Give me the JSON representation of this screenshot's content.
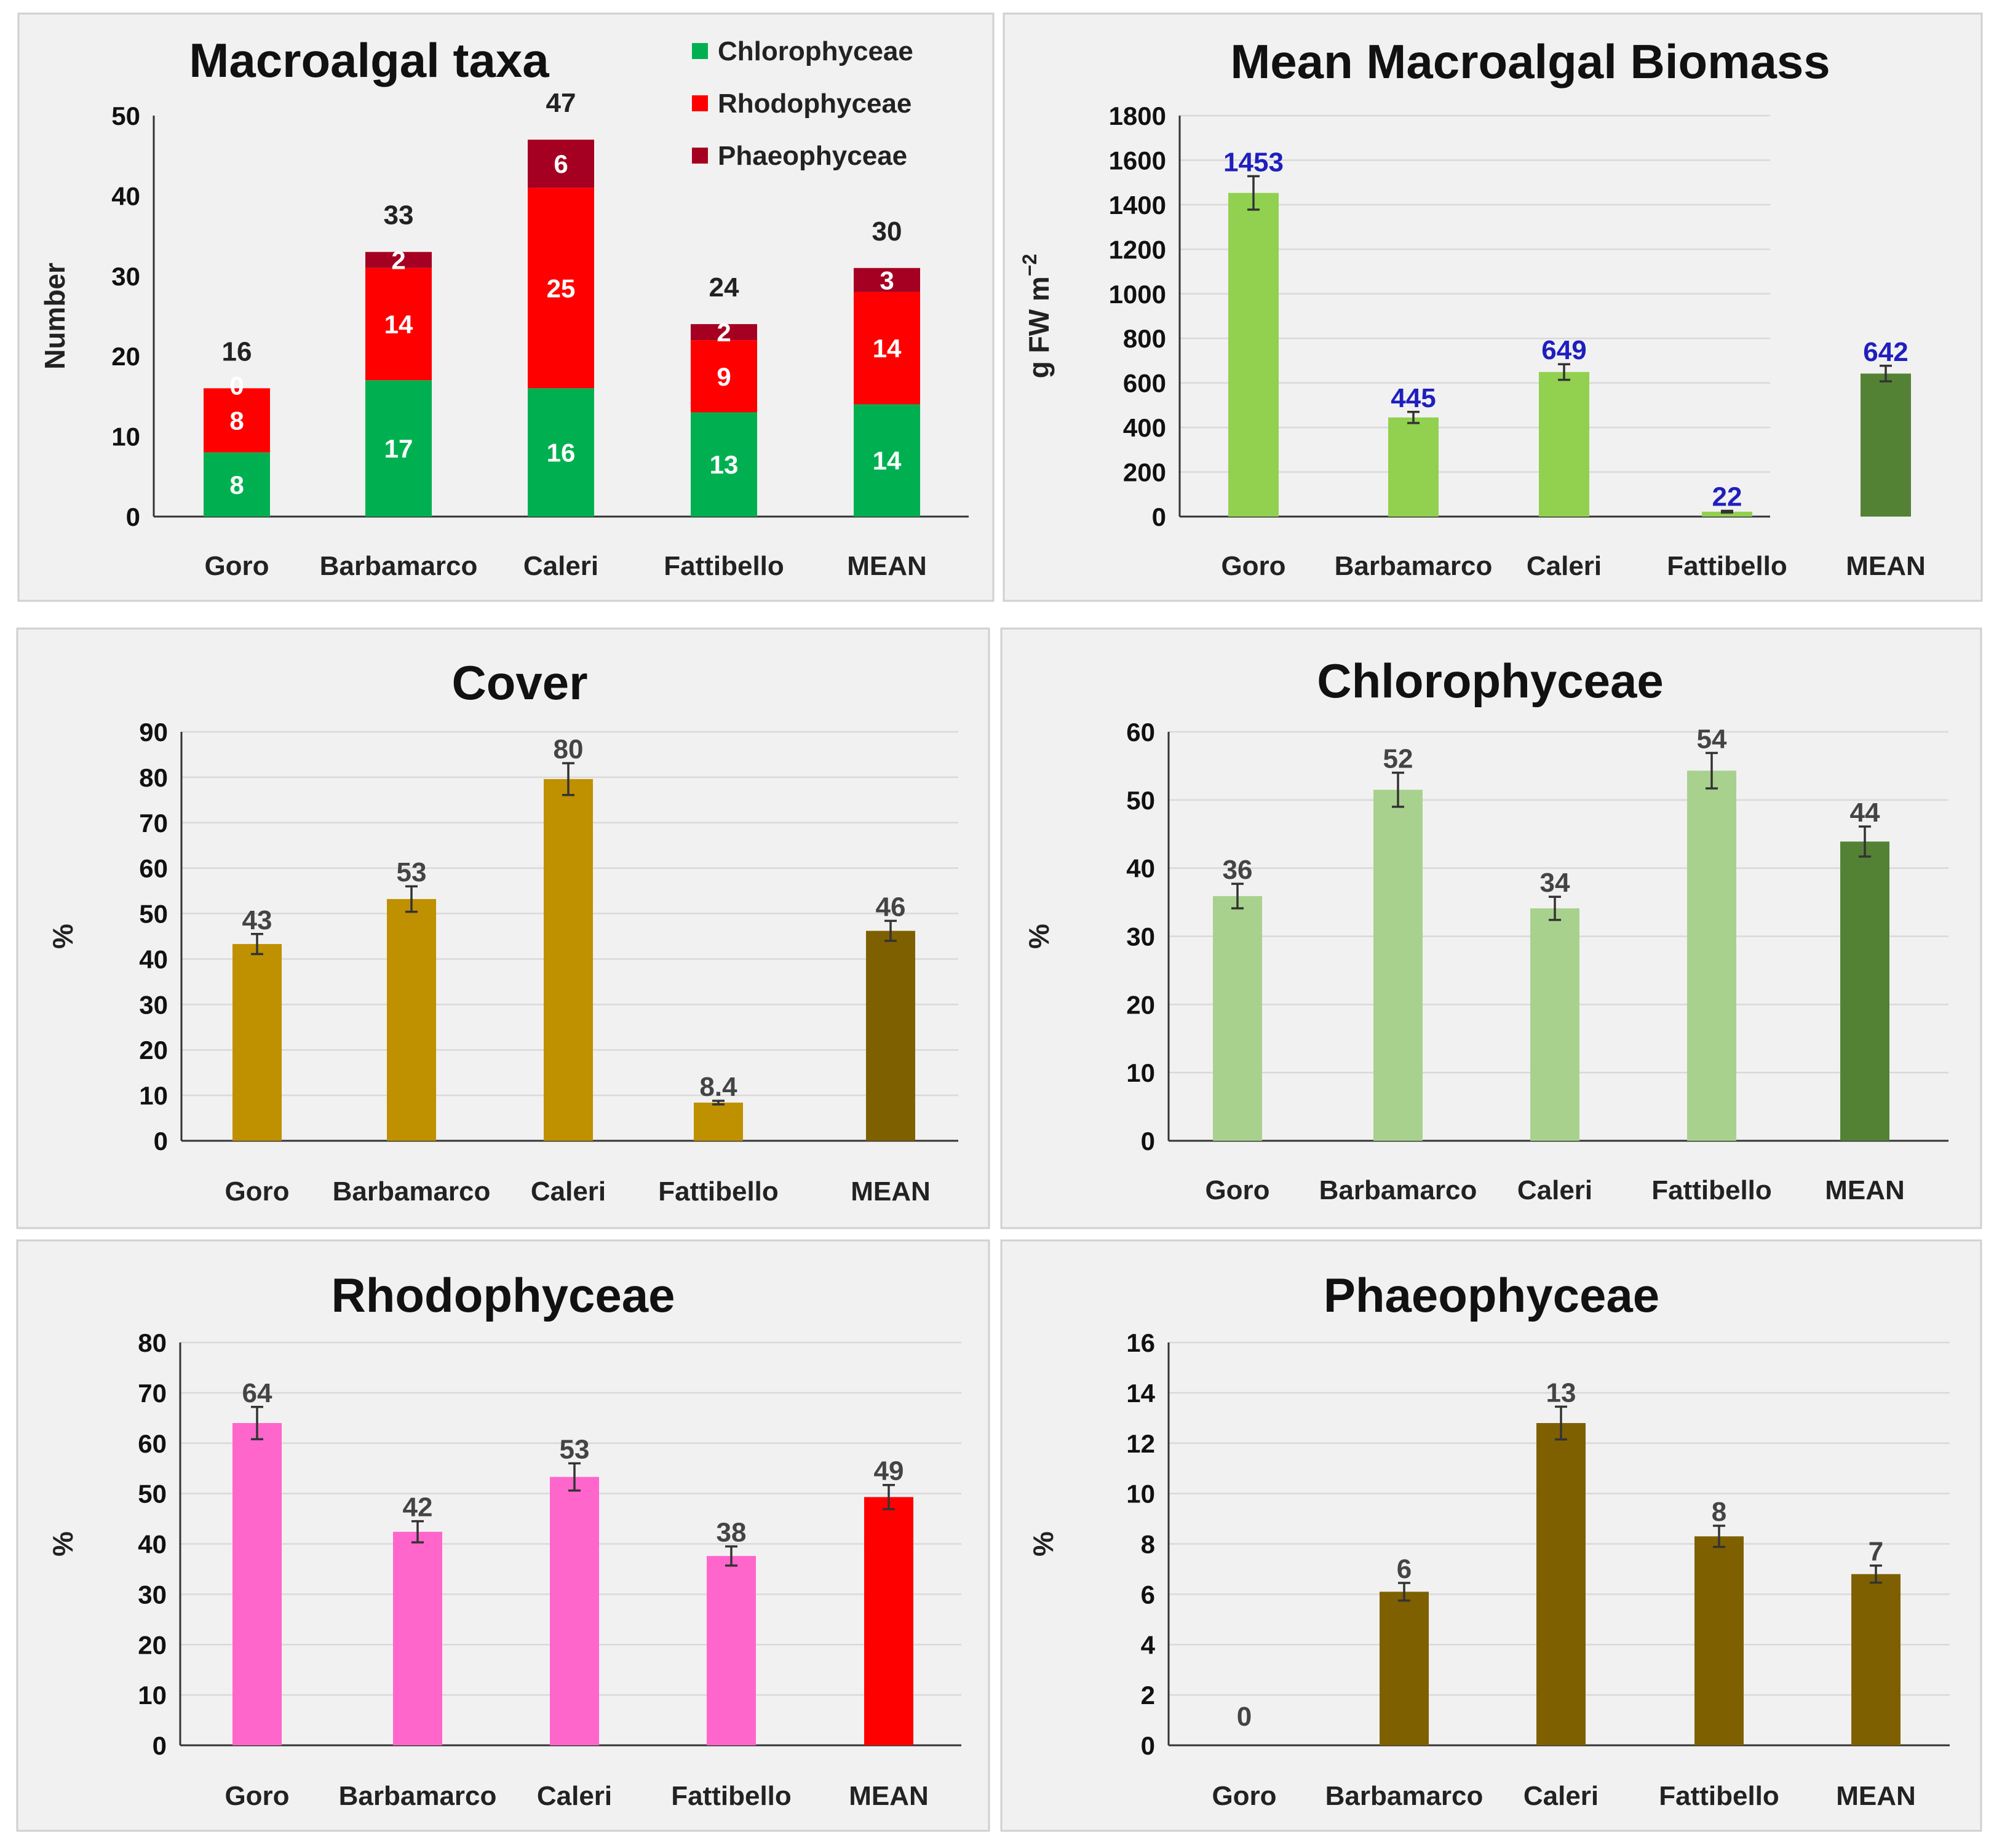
{
  "chart_data": [
    {
      "id": "taxa",
      "type": "bar",
      "stacked": true,
      "title": "Macroalgal taxa",
      "ylabel": "Number",
      "ylim": [
        0,
        50
      ],
      "yticks": [
        0,
        10,
        20,
        30,
        40,
        50
      ],
      "categories": [
        "Goro",
        "Barbamarco",
        "Caleri",
        "Fattibello",
        "MEAN"
      ],
      "series": [
        {
          "name": "Chlorophyceae",
          "color": "#00b050",
          "values": [
            8,
            17,
            16,
            13,
            14
          ]
        },
        {
          "name": "Rhodophyceae",
          "color": "#ff0000",
          "values": [
            8,
            14,
            25,
            9,
            14
          ]
        },
        {
          "name": "Phaeophyceae",
          "color": "#a50021",
          "values": [
            0,
            2,
            6,
            2,
            3
          ]
        }
      ],
      "segment_labels": [
        [
          "8",
          "8",
          "0"
        ],
        [
          "17",
          "14",
          "2"
        ],
        [
          "16",
          "25",
          "6"
        ],
        [
          "13",
          "9",
          "2"
        ],
        [
          "14",
          "14",
          "3"
        ]
      ],
      "totals": [
        "16",
        "33",
        "47",
        "24",
        "30"
      ],
      "legend": "top-right"
    },
    {
      "id": "biomass",
      "type": "bar",
      "title": "Mean Macroalgal Biomass",
      "ylabel": "g FW m",
      "ylabel_sup": "−2",
      "ylim": [
        0,
        1800
      ],
      "yticks": [
        0,
        200,
        400,
        600,
        800,
        1000,
        1200,
        1400,
        1600,
        1800
      ],
      "categories": [
        "Goro",
        "Barbamarco",
        "Caleri",
        "Fattibello",
        "MEAN"
      ],
      "values": [
        1453,
        445,
        649,
        22,
        642
      ],
      "errors": [
        75,
        25,
        35,
        4,
        35
      ],
      "labels": [
        "1453",
        "445",
        "649",
        "22",
        "642"
      ],
      "colors": [
        "#92d050",
        "#92d050",
        "#92d050",
        "#92d050",
        "#548235"
      ],
      "label_color": "#1f1fbf",
      "mean_category_color": "#1f1fbf"
    },
    {
      "id": "cover",
      "type": "bar",
      "title": "Cover",
      "ylabel": "%",
      "ylim": [
        0,
        90
      ],
      "yticks": [
        0,
        10,
        20,
        30,
        40,
        50,
        60,
        70,
        80,
        90
      ],
      "categories": [
        "Goro",
        "Barbamarco",
        "Caleri",
        "Fattibello",
        "MEAN"
      ],
      "values": [
        43.3,
        53.2,
        79.6,
        8.4,
        46.2
      ],
      "errors": [
        2.2,
        2.8,
        3.5,
        0.4,
        2.2
      ],
      "labels": [
        "43",
        "53",
        "80",
        "8.4",
        "46"
      ],
      "colors": [
        "#bf9000",
        "#bf9000",
        "#bf9000",
        "#bf9000",
        "#7f6000"
      ]
    },
    {
      "id": "chlorophyceae",
      "type": "bar",
      "title": "Chlorophyceae",
      "ylabel": "%",
      "ylim": [
        0,
        60
      ],
      "yticks": [
        0,
        10,
        20,
        30,
        40,
        50,
        60
      ],
      "categories": [
        "Goro",
        "Barbamarco",
        "Caleri",
        "Fattibello",
        "MEAN"
      ],
      "values": [
        35.9,
        51.5,
        34.1,
        54.3,
        43.9
      ],
      "errors": [
        1.8,
        2.5,
        1.7,
        2.6,
        2.2
      ],
      "labels": [
        "36",
        "52",
        "34",
        "54",
        "44"
      ],
      "colors": [
        "#a9d18e",
        "#a9d18e",
        "#a9d18e",
        "#a9d18e",
        "#548235"
      ]
    },
    {
      "id": "rhodophyceae",
      "type": "bar",
      "title": "Rhodophyceae",
      "ylabel": "%",
      "ylim": [
        0,
        80
      ],
      "yticks": [
        0,
        10,
        20,
        30,
        40,
        50,
        60,
        70,
        80
      ],
      "categories": [
        "Goro",
        "Barbamarco",
        "Caleri",
        "Fattibello",
        "MEAN"
      ],
      "values": [
        64,
        42.4,
        53.3,
        37.6,
        49.3
      ],
      "errors": [
        3.2,
        2.1,
        2.7,
        1.9,
        2.4
      ],
      "labels": [
        "64",
        "42",
        "53",
        "38",
        "49"
      ],
      "colors": [
        "#ff66cc",
        "#ff66cc",
        "#ff66cc",
        "#ff66cc",
        "#ff0000"
      ]
    },
    {
      "id": "phaeophyceae",
      "type": "bar",
      "title": "Phaeophyceae",
      "ylabel": "%",
      "ylim": [
        0,
        16
      ],
      "yticks": [
        0,
        2,
        4,
        6,
        8,
        10,
        12,
        14,
        16
      ],
      "categories": [
        "Goro",
        "Barbamarco",
        "Caleri",
        "Fattibello",
        "MEAN"
      ],
      "values": [
        0,
        6.1,
        12.8,
        8.3,
        6.8
      ],
      "errors": [
        0,
        0.35,
        0.65,
        0.42,
        0.34
      ],
      "labels": [
        "0",
        "6",
        "13",
        "8",
        "7"
      ],
      "colors": [
        "#7f6000",
        "#7f6000",
        "#7f6000",
        "#7f6000",
        "#7f6000"
      ]
    }
  ]
}
